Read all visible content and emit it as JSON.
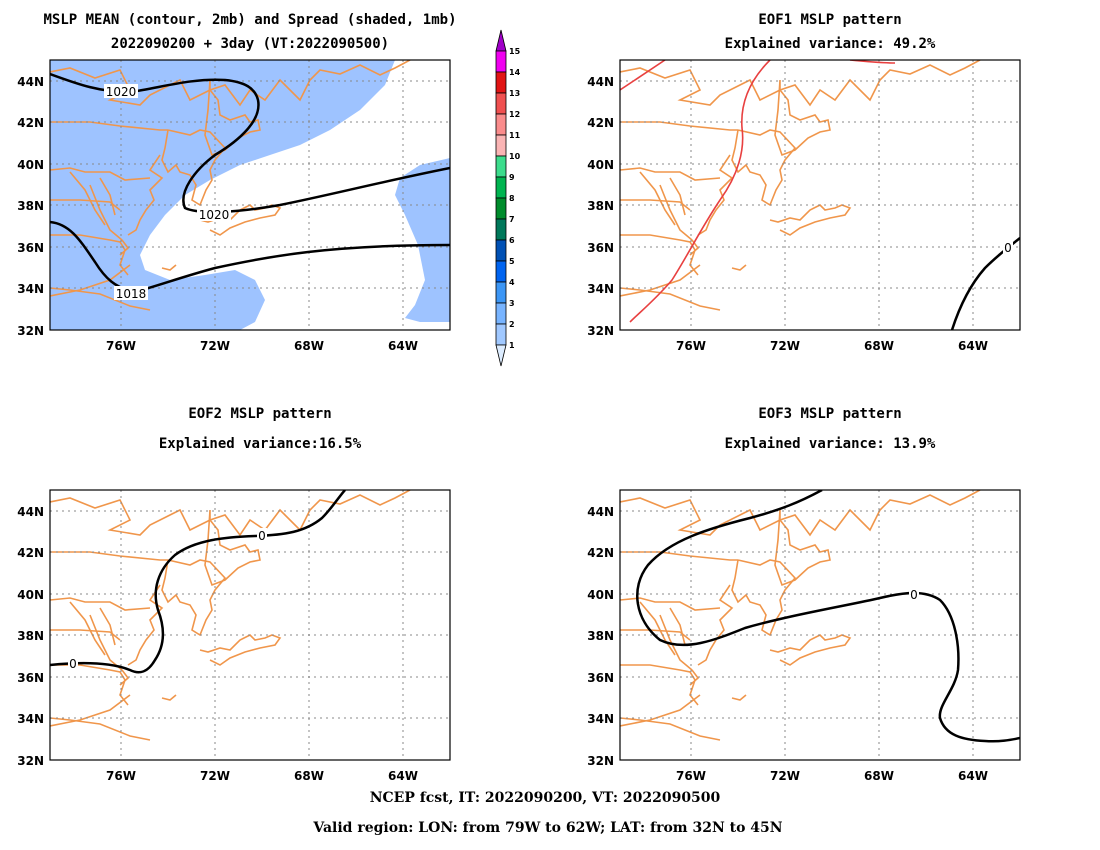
{
  "panels": [
    {
      "title1": "MSLP MEAN (contour, 2mb) and Spread (shaded, 1mb)",
      "title2": "2022090200 + 3day (VT:2022090500)",
      "contour_labels": [
        "1020",
        "1020",
        "1018"
      ]
    },
    {
      "title1": "EOF1 MSLP pattern",
      "title2": "Explained variance: 49.2%",
      "contour_labels": [
        "0"
      ]
    },
    {
      "title1": "EOF2 MSLP pattern",
      "title2": "Explained variance:16.5%",
      "contour_labels": [
        "0",
        "0"
      ]
    },
    {
      "title1": "EOF3 MSLP pattern",
      "title2": "Explained variance: 13.9%",
      "contour_labels": [
        "0"
      ]
    }
  ],
  "axes": {
    "lat_ticks": [
      "44N",
      "42N",
      "40N",
      "38N",
      "36N",
      "34N",
      "32N"
    ],
    "lon_ticks": [
      "76W",
      "72W",
      "68W",
      "64W"
    ]
  },
  "colorbar": {
    "levels": [
      "15",
      "14",
      "13",
      "12",
      "11",
      "10",
      "9",
      "8",
      "7",
      "6",
      "5",
      "4",
      "3",
      "2",
      "1"
    ],
    "colors": [
      "#a000c8",
      "#f000f0",
      "#e11414",
      "#f05050",
      "#fa8c8c",
      "#fab4b4",
      "#3cdc8c",
      "#00b450",
      "#008c2c",
      "#00785a",
      "#0050b4",
      "#0064f0",
      "#3c96f5",
      "#78b4ff",
      "#a0c8ff",
      "#dcecff"
    ]
  },
  "colors": {
    "spread_shade": "#9ec3ff",
    "coastline": "#f0964b",
    "eof1_negative": "#e84040",
    "contour": "#000000",
    "grid": "#888888"
  },
  "footer": {
    "line1": "NCEP fcst, IT: 2022090200, VT: 2022090500",
    "line2": "Valid region: LON: from 79W to 62W; LAT: from 32N to 45N"
  }
}
